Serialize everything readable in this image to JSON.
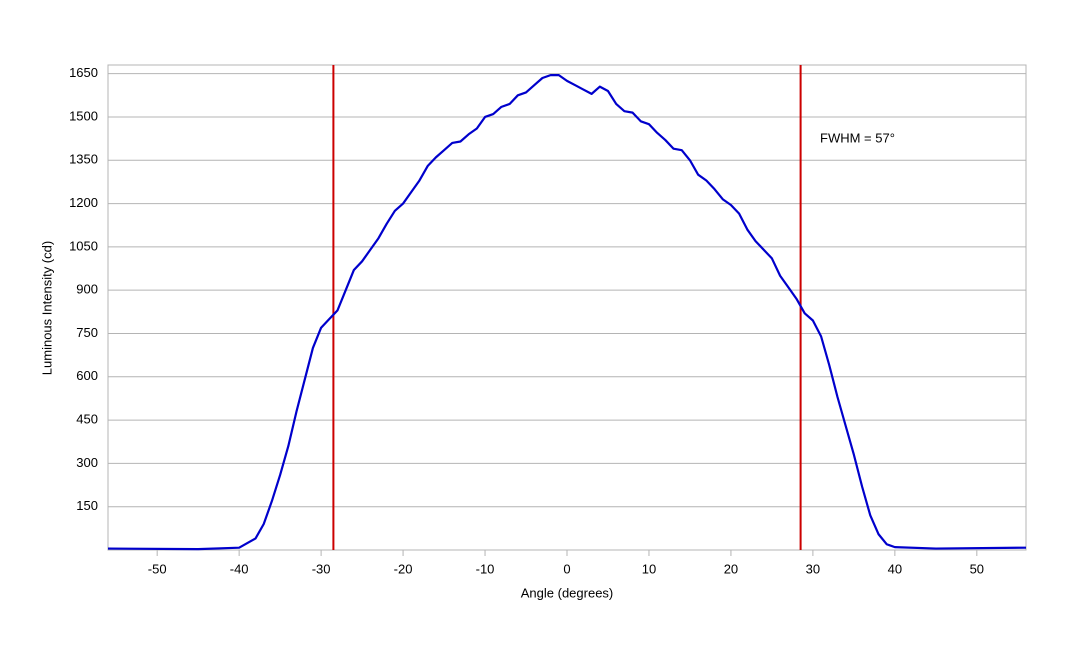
{
  "chart_data": {
    "type": "line",
    "x_label": "Angle (degrees)",
    "y_label": "Luminous Intensity (cd)",
    "annotation": "FWHM = 57°",
    "x": [
      -56,
      -45,
      -40,
      -38,
      -37,
      -36,
      -35,
      -34,
      -33,
      -32,
      -31,
      -30,
      -29,
      -28,
      -27,
      -26,
      -25,
      -24,
      -23,
      -22,
      -21,
      -20,
      -19,
      -18,
      -17,
      -16,
      -15,
      -14,
      -13,
      -12,
      -11,
      -10,
      -9,
      -8,
      -7,
      -6,
      -5,
      -4,
      -3,
      -2,
      -1,
      0,
      1,
      2,
      3,
      4,
      5,
      6,
      7,
      8,
      9,
      10,
      11,
      12,
      13,
      14,
      15,
      16,
      17,
      18,
      19,
      20,
      21,
      22,
      23,
      24,
      25,
      26,
      27,
      28,
      29,
      30,
      31,
      32,
      33,
      34,
      35,
      36,
      37,
      38,
      39,
      40,
      45,
      56
    ],
    "series": [
      {
        "color": "#0000cc",
        "values": [
          5,
          3,
          8,
          40,
          90,
          170,
          260,
          360,
          480,
          590,
          700,
          770,
          800,
          830,
          900,
          970,
          1000,
          1040,
          1080,
          1130,
          1175,
          1200,
          1240,
          1280,
          1330,
          1360,
          1385,
          1410,
          1415,
          1440,
          1460,
          1500,
          1510,
          1535,
          1545,
          1575,
          1585,
          1610,
          1635,
          1645,
          1645,
          1625,
          1610,
          1595,
          1580,
          1605,
          1590,
          1545,
          1520,
          1515,
          1485,
          1475,
          1445,
          1420,
          1390,
          1385,
          1350,
          1300,
          1280,
          1250,
          1215,
          1195,
          1165,
          1110,
          1070,
          1040,
          1010,
          950,
          910,
          870,
          820,
          795,
          740,
          640,
          530,
          430,
          330,
          220,
          120,
          55,
          20,
          10,
          5,
          8
        ]
      }
    ],
    "vlines": [
      -28.5,
      28.5
    ],
    "vline_color": "#cc0000",
    "xlim": [
      -56,
      56
    ],
    "xticks": [
      -50,
      -40,
      -30,
      -20,
      -10,
      0,
      10,
      20,
      30,
      40,
      50
    ],
    "ylim": [
      0,
      1680
    ],
    "yticks": [
      150,
      300,
      450,
      600,
      750,
      900,
      1050,
      1200,
      1350,
      1500,
      1650
    ],
    "grid": true
  }
}
